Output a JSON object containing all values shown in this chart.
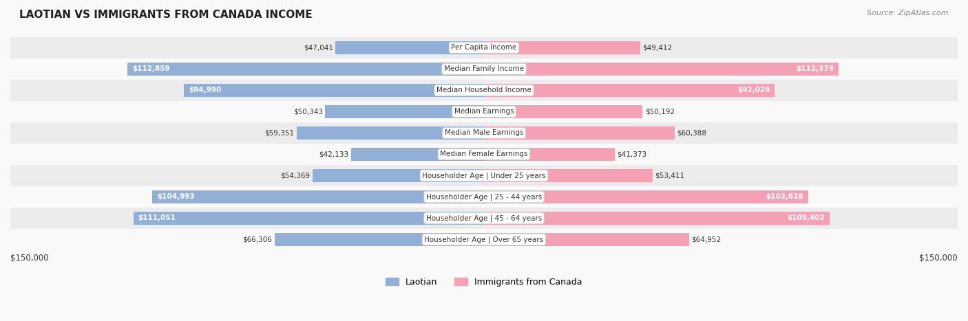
{
  "title": "LAOTIAN VS IMMIGRANTS FROM CANADA INCOME",
  "source": "Source: ZipAtlas.com",
  "categories": [
    "Per Capita Income",
    "Median Family Income",
    "Median Household Income",
    "Median Earnings",
    "Median Male Earnings",
    "Median Female Earnings",
    "Householder Age | Under 25 years",
    "Householder Age | 25 - 44 years",
    "Householder Age | 45 - 64 years",
    "Householder Age | Over 65 years"
  ],
  "laotian_values": [
    47041,
    112859,
    94990,
    50343,
    59351,
    42133,
    54369,
    104993,
    111051,
    66306
  ],
  "canada_values": [
    49412,
    112374,
    92029,
    50192,
    60388,
    41373,
    53411,
    102616,
    109402,
    64952
  ],
  "laotian_color": "#92afd7",
  "canada_color": "#f4a0b5",
  "laotian_label_color_dark": "#333333",
  "laotian_label_color_white": "#ffffff",
  "canada_label_color_dark": "#333333",
  "canada_label_color_white": "#ffffff",
  "bg_color": "#f5f5f5",
  "row_bg_color": "#eeeeee",
  "row_bg_color2": "#ffffff",
  "max_value": 150000,
  "legend_laotian": "Laotian",
  "legend_canada": "Immigrants from Canada",
  "xlabel_left": "$150,000",
  "xlabel_right": "$150,000",
  "white_label_threshold": 80000
}
